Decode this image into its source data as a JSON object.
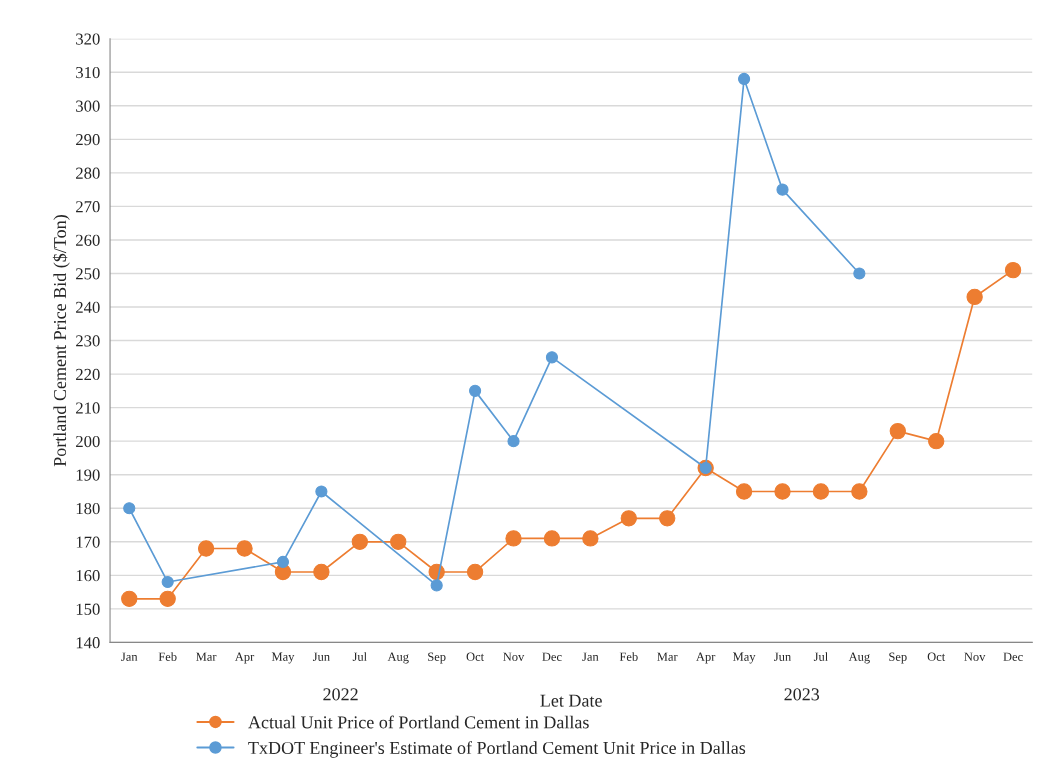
{
  "chart_data": {
    "type": "line",
    "xlabel": "Let Date",
    "ylabel": "Portland Cement Price Bid ($/Ton)",
    "categories": [
      "Jan",
      "Feb",
      "Mar",
      "Apr",
      "May",
      "Jun",
      "Jul",
      "Aug",
      "Sep",
      "Oct",
      "Nov",
      "Dec",
      "Jan",
      "Feb",
      "Mar",
      "Apr",
      "May",
      "Jun",
      "Jul",
      "Aug",
      "Sep",
      "Oct",
      "Nov",
      "Dec"
    ],
    "series": [
      {
        "name": "Actual Unit Price of Portland Cement in Dallas",
        "color": "#ed7d31",
        "values": [
          153,
          153,
          168,
          168,
          161,
          161,
          170,
          170,
          161,
          161,
          171,
          171,
          171,
          177,
          177,
          192,
          185,
          185,
          185,
          185,
          203,
          200,
          243,
          251
        ]
      },
      {
        "name": "TxDOT Engineer's Estimate of Portland Cement Unit Price in Dallas",
        "color": "#5b9bd5",
        "values": [
          180,
          158,
          null,
          null,
          164,
          185,
          null,
          null,
          157,
          215,
          200,
          225,
          null,
          null,
          null,
          192,
          308,
          275,
          null,
          250,
          null,
          null,
          null,
          null
        ]
      }
    ],
    "annotations": [
      "2022",
      "2023"
    ],
    "ylim": [
      140,
      320
    ],
    "yticks": [
      140,
      150,
      160,
      170,
      180,
      190,
      200,
      210,
      220,
      230,
      240,
      250,
      260,
      270,
      280,
      290,
      300,
      310,
      320
    ],
    "grid": "y",
    "legend": "bottom",
    "marker": "circle",
    "line_style": "solid"
  }
}
